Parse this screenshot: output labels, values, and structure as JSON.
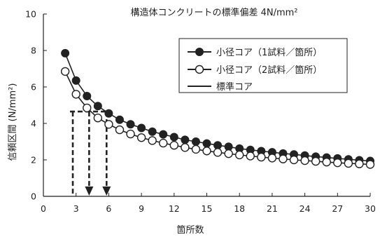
{
  "chart_data": {
    "type": "line",
    "title": "構造体コンクリートの標準偏差 4N/mm²",
    "xlabel": "箇所数",
    "ylabel": "信頼区間 (N/mm²)",
    "xlim": [
      0,
      30
    ],
    "ylim": [
      0,
      10
    ],
    "xticks": [
      0,
      3,
      6,
      9,
      12,
      15,
      18,
      21,
      24,
      27,
      30
    ],
    "yticks": [
      0,
      2,
      4,
      6,
      8,
      10
    ],
    "grid": false,
    "legend_position": "top-right",
    "series": [
      {
        "name": "小径コア（1試料／箇所）",
        "marker": "filled-circle",
        "color": "#222222",
        "x": [
          2,
          3,
          4,
          5,
          6,
          7,
          8,
          9,
          10,
          11,
          12,
          13,
          14,
          15,
          16,
          17,
          18,
          19,
          20,
          21,
          22,
          23,
          24,
          25,
          26,
          27,
          28,
          29,
          30
        ],
        "y": [
          7.85,
          6.35,
          5.5,
          4.95,
          4.55,
          4.2,
          3.95,
          3.75,
          3.55,
          3.4,
          3.25,
          3.1,
          3.0,
          2.9,
          2.8,
          2.72,
          2.62,
          2.55,
          2.48,
          2.42,
          2.35,
          2.3,
          2.24,
          2.18,
          2.13,
          2.08,
          2.03,
          1.98,
          1.94
        ]
      },
      {
        "name": "小径コア（2試料／箇所）",
        "marker": "open-circle",
        "color": "#222222",
        "x": [
          2,
          3,
          4,
          5,
          6,
          7,
          8,
          9,
          10,
          11,
          12,
          13,
          14,
          15,
          16,
          17,
          18,
          19,
          20,
          21,
          22,
          23,
          24,
          25,
          26,
          27,
          28,
          29,
          30
        ],
        "y": [
          6.85,
          5.6,
          4.85,
          4.3,
          3.95,
          3.65,
          3.42,
          3.22,
          3.06,
          2.92,
          2.8,
          2.68,
          2.58,
          2.49,
          2.41,
          2.34,
          2.27,
          2.21,
          2.15,
          2.1,
          2.05,
          2.0,
          1.96,
          1.92,
          1.88,
          1.84,
          1.81,
          1.78,
          1.75
        ]
      },
      {
        "name": "標準コア",
        "marker": "none",
        "color": "#222222",
        "x": [],
        "y": []
      }
    ],
    "annotations": {
      "dashed_arrows": [
        {
          "x": 2.7,
          "from_y": 4.65,
          "to_y": 0,
          "arrowhead": false
        },
        {
          "x": 4.2,
          "from_y": 4.65,
          "to_y": 0,
          "arrowhead": true
        },
        {
          "x": 5.8,
          "from_y": 4.65,
          "to_y": 0,
          "arrowhead": true
        }
      ]
    }
  }
}
